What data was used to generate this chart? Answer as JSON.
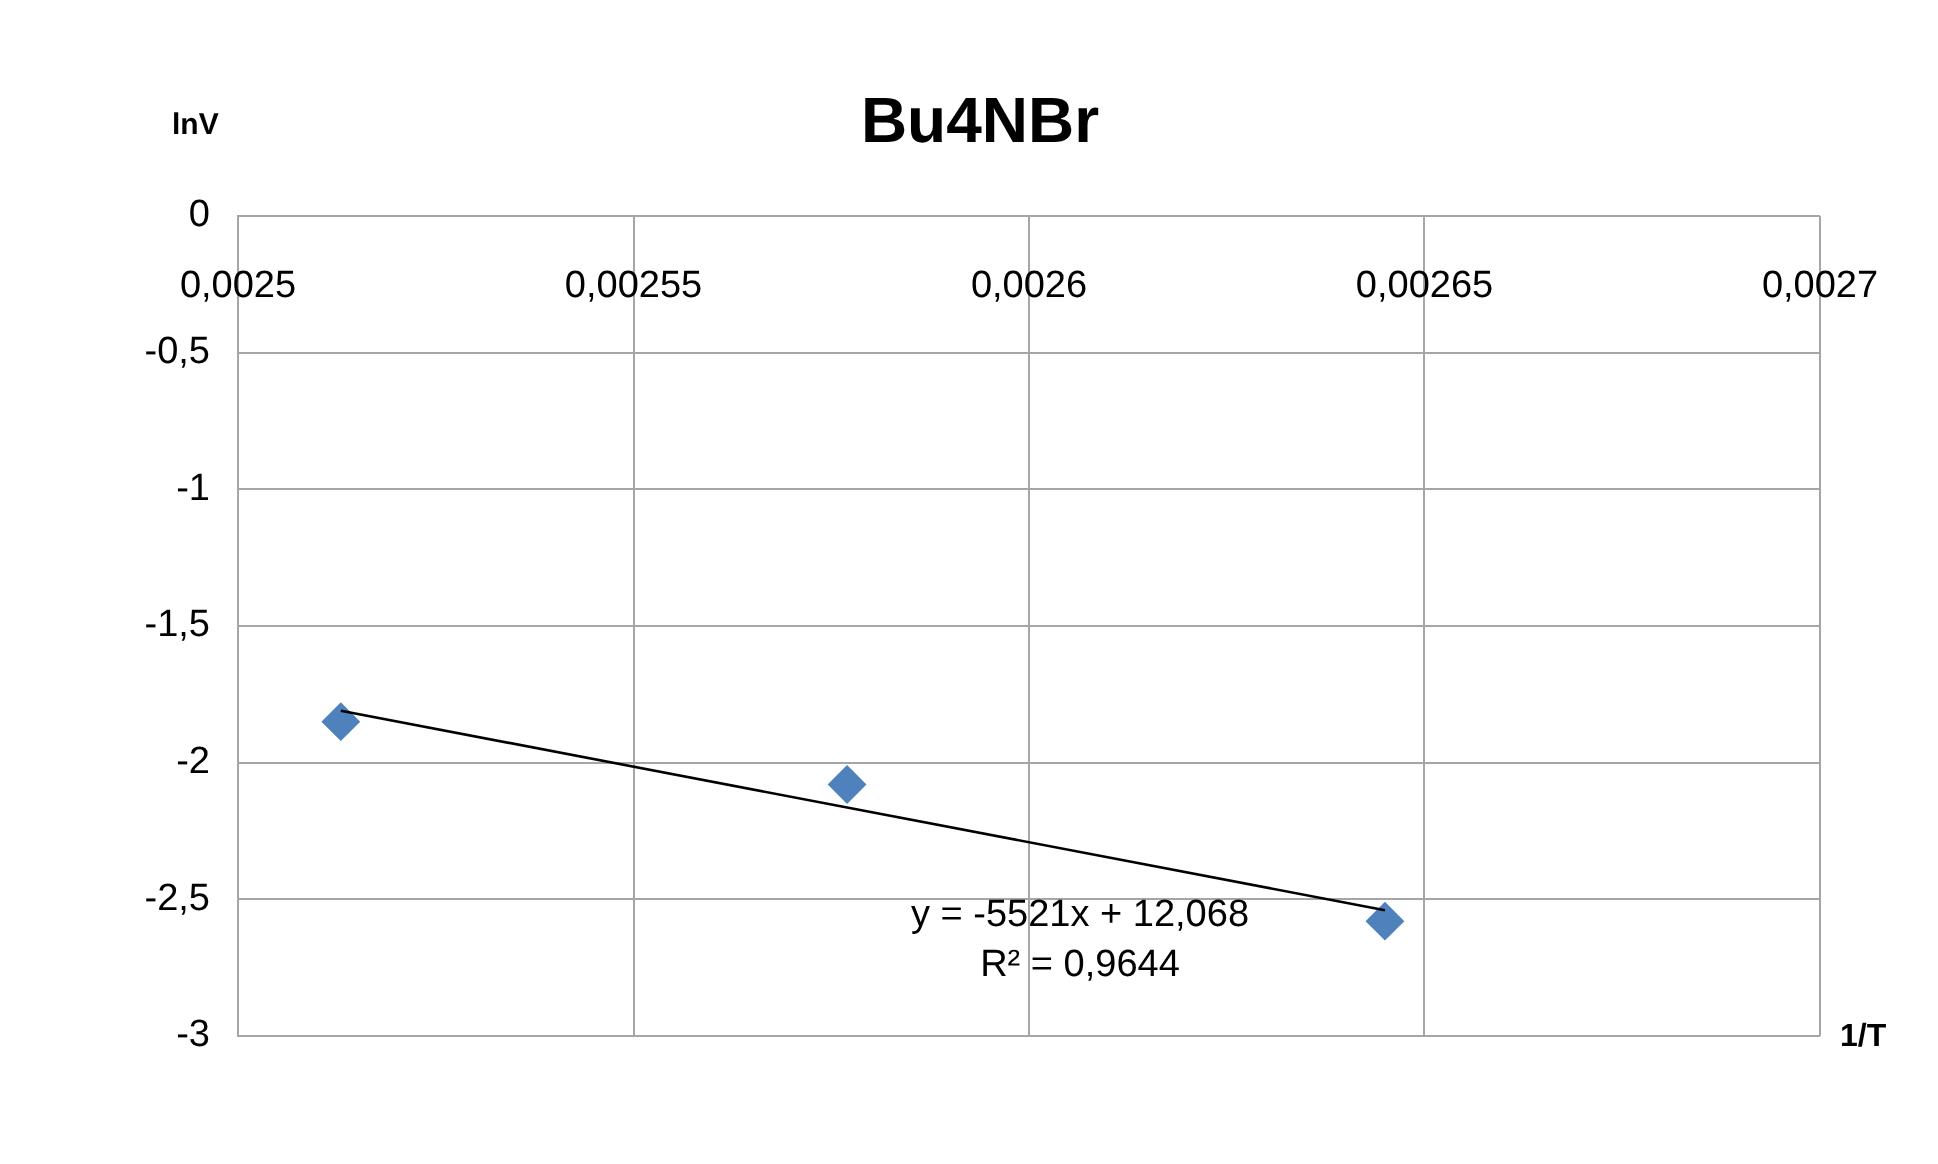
{
  "chart_data": {
    "type": "scatter",
    "title": "Bu4NBr",
    "xlabel": "1/T",
    "ylabel": "lnV",
    "xlim": [
      0.0025,
      0.0027
    ],
    "xticks": [
      {
        "value": 0.0025,
        "label": "0,0025"
      },
      {
        "value": 0.00255,
        "label": "0,00255"
      },
      {
        "value": 0.0026,
        "label": "0,0026"
      },
      {
        "value": 0.00265,
        "label": "0,00265"
      },
      {
        "value": 0.0027,
        "label": "0,0027"
      }
    ],
    "ylim": [
      -3,
      0
    ],
    "yticks": [
      {
        "value": 0,
        "label": "0"
      },
      {
        "value": -0.5,
        "label": "-0,5"
      },
      {
        "value": -1,
        "label": "-1"
      },
      {
        "value": -1.5,
        "label": "-1,5"
      },
      {
        "value": -2,
        "label": "-2"
      },
      {
        "value": -2.5,
        "label": "-2,5"
      },
      {
        "value": -3,
        "label": "-3"
      }
    ],
    "grid": true,
    "legend": false,
    "marker": "diamond",
    "series": [
      {
        "color": "#4f81bd",
        "x": [
          0.002513,
          0.002577,
          0.002645
        ],
        "values": [
          -1.85,
          -2.08,
          -2.58
        ]
      },
      {
        "type": "line",
        "color": "#000000",
        "x": [
          0.002513,
          0.002645
        ],
        "values": [
          -1.81,
          -2.54
        ],
        "marker": "none",
        "line_style": "solid"
      }
    ],
    "annotations": [
      "y = -5521x + 12,068",
      "R² = 0,9644"
    ]
  }
}
